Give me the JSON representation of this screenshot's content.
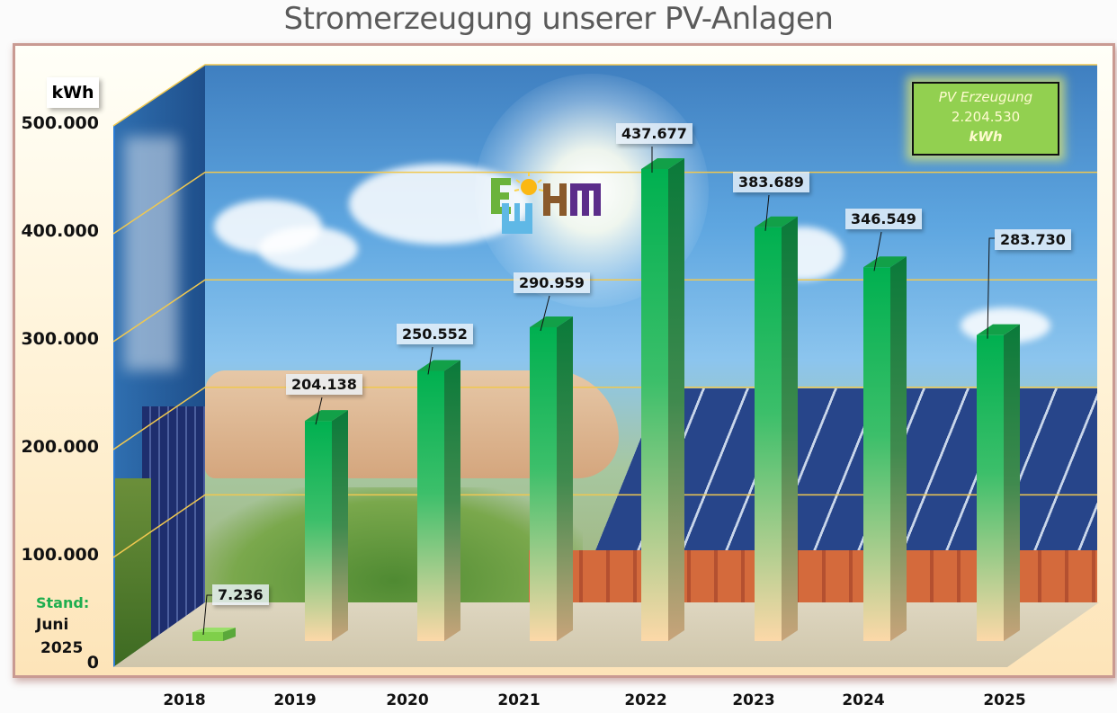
{
  "title": "Stromerzeugung unserer PV-Anlagen",
  "total_box": {
    "label": "PV Erzeugung",
    "value": "2.204.530",
    "unit": "kWh"
  },
  "status": {
    "label": "Stand:",
    "month": "Juni",
    "year": "2025"
  },
  "logo": {
    "text": "EWHM",
    "colors": [
      "#6bb33c",
      "#5fb8e6",
      "#8a5a2b",
      "#5b2d8a"
    ]
  },
  "colors": {
    "bar_top": "#00b050",
    "bar_bottom": "#fcd8a8",
    "bar_2018": "#7fcf4a",
    "grid": "#f0c850",
    "frame_border": "#c99a92",
    "total_box": "#92d050"
  },
  "chart_data": {
    "type": "bar",
    "title": "Stromerzeugung unserer PV-Anlagen",
    "xlabel": "",
    "ylabel": "kWh",
    "ylim": [
      0,
      500000
    ],
    "yticks": [
      0,
      100000,
      200000,
      300000,
      400000,
      500000
    ],
    "ytick_labels": [
      "0",
      "100.000",
      "200.000",
      "300.000",
      "400.000",
      "500.000"
    ],
    "grid": true,
    "categories": [
      "2018",
      "2019",
      "2020",
      "2021",
      "2022",
      "2023",
      "2024",
      "2025"
    ],
    "values": [
      7236,
      204138,
      250552,
      290959,
      437677,
      383689,
      346549,
      283730
    ],
    "value_labels": [
      "7.236",
      "204.138",
      "250.552",
      "290.959",
      "437.677",
      "383.689",
      "346.549",
      "283.730"
    ],
    "legend": "none"
  }
}
